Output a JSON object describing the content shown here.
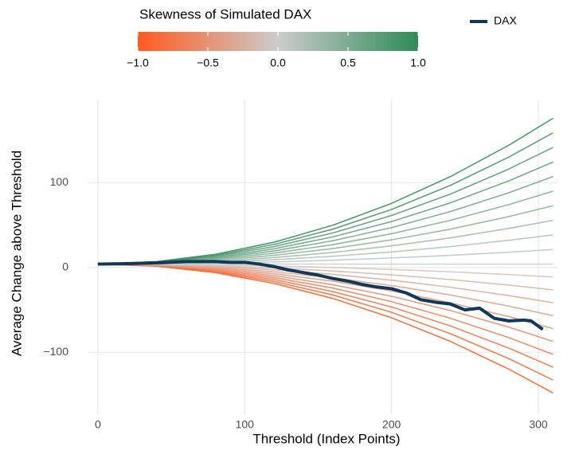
{
  "chart_data": {
    "type": "line",
    "xlabel": "Threshold (Index Points)",
    "ylabel": "Average Change above Threshold",
    "xlim": [
      -7,
      313
    ],
    "ylim": [
      -173,
      198
    ],
    "xticks": [
      0,
      100,
      200,
      300
    ],
    "yticks": [
      {
        "value": -100,
        "label": "−100"
      },
      0,
      100
    ],
    "grid": true,
    "legend": "top-right",
    "colorbar": {
      "title": "Skewness of Simulated DAX",
      "lim": [
        -1,
        1
      ],
      "ticks": [
        {
          "value": -1,
          "label": "−1.0"
        },
        {
          "value": -0.5,
          "label": "−0.5"
        },
        {
          "value": 0,
          "label": "0.0"
        },
        {
          "value": 0.5,
          "label": "0.5"
        },
        {
          "value": 1,
          "label": "1.0"
        }
      ],
      "colors": [
        "#ff5a1f",
        "#cccccc",
        "#2e8b57"
      ]
    },
    "simulations": {
      "x": [
        0,
        40,
        80,
        120,
        160,
        200,
        240,
        280,
        310
      ],
      "skewness": [
        -1,
        -0.9,
        -0.8,
        -0.7,
        -0.6,
        -0.5,
        -0.4,
        -0.3,
        -0.2,
        -0.1,
        0,
        0.1,
        0.2,
        0.3,
        0.4,
        0.5,
        0.6,
        0.7,
        0.8,
        0.9,
        1
      ],
      "values": [
        [
          4,
          1.5,
          -6.1,
          -18.8,
          -36.5,
          -59.3,
          -87.1,
          -120,
          -148
        ],
        [
          4,
          1.7,
          -5.1,
          -16.5,
          -32.4,
          -52.9,
          -78.0,
          -107.6,
          -132.8
        ],
        [
          4,
          2.0,
          -4.1,
          -14.2,
          -28.4,
          -46.6,
          -68.9,
          -95.2,
          -117.6
        ],
        [
          4,
          2.2,
          -3.1,
          -11.9,
          -24.3,
          -40.3,
          -59.8,
          -82.8,
          -102.4
        ],
        [
          4,
          2.5,
          -2.1,
          -9.7,
          -20.3,
          -34.0,
          -50.7,
          -70.4,
          -87.2
        ],
        [
          4,
          2.7,
          -1.1,
          -7.4,
          -16.2,
          -27.6,
          -41.6,
          -58.0,
          -72
        ],
        [
          4,
          3.0,
          0,
          -5.1,
          -12.2,
          -21.3,
          -32.4,
          -45.6,
          -56.8
        ],
        [
          4,
          3.2,
          1.0,
          -2.8,
          -8.1,
          -15.0,
          -23.3,
          -33.2,
          -41.6
        ],
        [
          4,
          3.5,
          2.0,
          -0.6,
          -4.1,
          -8.7,
          -14.2,
          -20.8,
          -26.4
        ],
        [
          4,
          3.7,
          3.0,
          1.7,
          0,
          -2.3,
          -5.1,
          -8.4,
          -11.2
        ],
        [
          4,
          4,
          4,
          4,
          4,
          4,
          4,
          4,
          4
        ],
        [
          4,
          4.3,
          5.1,
          6.6,
          8.6,
          11.2,
          14.3,
          18.0,
          21.2
        ],
        [
          4,
          4.6,
          6.3,
          9.2,
          13.2,
          18.3,
          24.6,
          32.1,
          38.4
        ],
        [
          4,
          4.9,
          7.4,
          11.7,
          17.7,
          25.5,
          34.9,
          46.1,
          55.6
        ],
        [
          4,
          5.1,
          8.6,
          14.3,
          22.3,
          32.6,
          45.2,
          60.1,
          72.8
        ],
        [
          4,
          5.4,
          9.7,
          16.9,
          26.9,
          39.8,
          55.6,
          74.2,
          90
        ],
        [
          4,
          5.7,
          10.9,
          19.5,
          31.5,
          47.0,
          65.9,
          88.2,
          107.2
        ],
        [
          4,
          6.0,
          12.0,
          22.0,
          36.1,
          54.1,
          76.2,
          102.2,
          124.4
        ],
        [
          4,
          6.3,
          13.2,
          24.6,
          40.7,
          61.3,
          86.5,
          116.2,
          141.6
        ],
        [
          4,
          6.6,
          14.3,
          27.2,
          45.2,
          68.4,
          96.8,
          130.3,
          158.8
        ],
        [
          4,
          6.9,
          15.5,
          29.8,
          49.8,
          75.6,
          107.1,
          144.3,
          176
        ]
      ]
    },
    "series": [
      {
        "name": "DAX",
        "color": "#0d3a5c",
        "x": [
          0,
          20,
          40,
          60,
          80,
          90,
          100,
          110,
          120,
          130,
          140,
          150,
          160,
          170,
          180,
          190,
          200,
          210,
          220,
          230,
          240,
          250,
          260,
          270,
          280,
          290,
          295,
          303
        ],
        "values": [
          4,
          4.5,
          5.5,
          7,
          7,
          6,
          6,
          4,
          1,
          -3,
          -6,
          -9,
          -13,
          -16,
          -20,
          -23,
          -25,
          -30,
          -38,
          -41,
          -43,
          -50,
          -48,
          -60,
          -63,
          -62,
          -63,
          -73
        ]
      }
    ]
  }
}
